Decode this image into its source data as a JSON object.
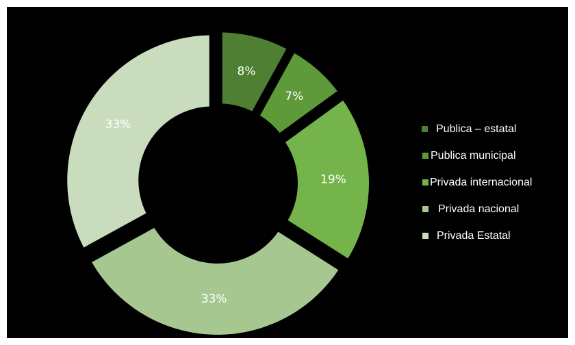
{
  "chart_data": {
    "type": "pie",
    "style": "donut",
    "exploded": true,
    "title": "",
    "categories": [
      "Publica – estatal",
      "Publica municipal",
      "Privada internacional",
      "Privada nacional",
      "Privada Estatal"
    ],
    "values": [
      8,
      7,
      19,
      33,
      33
    ],
    "labels": [
      "8%",
      "7%",
      "19%",
      "33%",
      "33%"
    ],
    "colors": [
      "#4e7f32",
      "#5e9a3a",
      "#74b44a",
      "#a6c890",
      "#c9dcbd"
    ],
    "legend_position": "right"
  }
}
